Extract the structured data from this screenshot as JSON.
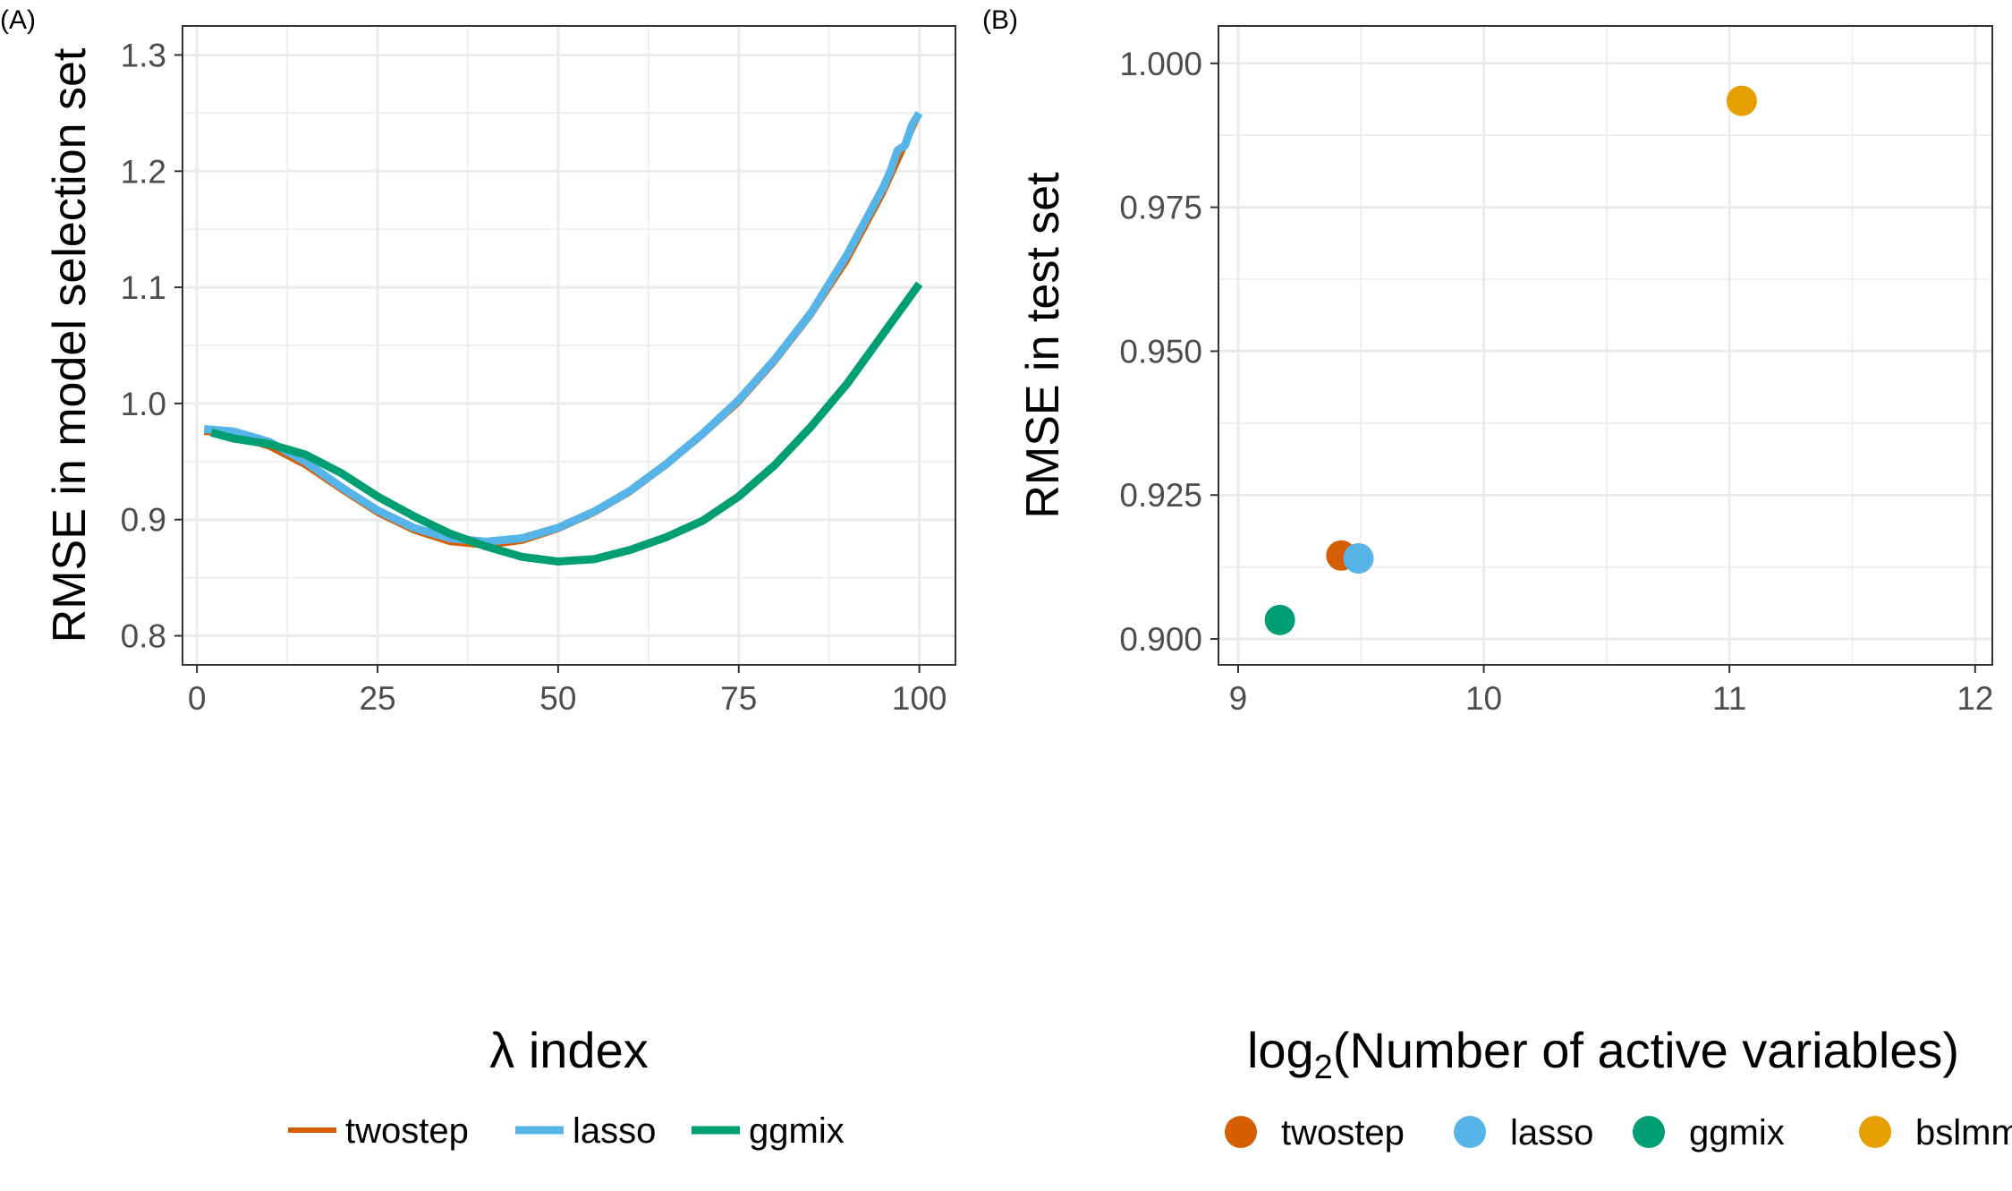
{
  "colors": {
    "twostep": "#D55E00",
    "lasso": "#56B4E9",
    "ggmix": "#009E73",
    "bslmm": "#E69F00",
    "grid": "#EBEBEB",
    "axis_text": "#4D4D4D"
  },
  "chart_data": [
    {
      "panel_label": "(A)",
      "type": "line",
      "xlabel_symbol": "λ",
      "xlabel_text": " index",
      "ylabel": "RMSE in model selection set",
      "xlim": [
        -2,
        105
      ],
      "ylim": [
        0.775,
        1.325
      ],
      "x_ticks": [
        0,
        25,
        50,
        75,
        100
      ],
      "y_ticks": [
        0.8,
        0.9,
        1.0,
        1.1,
        1.2,
        1.3
      ],
      "x_tick_labels": [
        "0",
        "25",
        "50",
        "75",
        "100"
      ],
      "y_tick_labels": [
        "0.8",
        "0.9",
        "1.0",
        "1.1",
        "1.2",
        "1.3"
      ],
      "grid": true,
      "legend_position": "bottom",
      "series": [
        {
          "name": "twostep",
          "x": [
            1,
            5,
            10,
            15,
            20,
            25,
            30,
            35,
            40,
            45,
            50,
            55,
            60,
            65,
            70,
            75,
            80,
            85,
            90,
            95,
            100
          ],
          "y": [
            0.975,
            0.972,
            0.962,
            0.946,
            0.925,
            0.905,
            0.89,
            0.88,
            0.877,
            0.881,
            0.891,
            0.905,
            0.923,
            0.946,
            0.972,
            1.0,
            1.035,
            1.075,
            1.122,
            1.18,
            1.248
          ]
        },
        {
          "name": "lasso",
          "x": [
            1,
            5,
            10,
            15,
            20,
            25,
            30,
            35,
            40,
            45,
            50,
            55,
            60,
            65,
            70,
            75,
            80,
            85,
            90,
            95,
            96,
            97,
            98,
            99,
            100
          ],
          "y": [
            0.978,
            0.976,
            0.967,
            0.95,
            0.928,
            0.908,
            0.893,
            0.884,
            0.881,
            0.884,
            0.893,
            0.907,
            0.925,
            0.948,
            0.974,
            1.003,
            1.038,
            1.078,
            1.128,
            1.186,
            1.2,
            1.218,
            1.222,
            1.24,
            1.25
          ]
        },
        {
          "name": "ggmix",
          "x": [
            2,
            5,
            10,
            15,
            20,
            25,
            30,
            35,
            40,
            45,
            50,
            55,
            60,
            65,
            70,
            75,
            80,
            85,
            90,
            95,
            100
          ],
          "y": [
            0.975,
            0.97,
            0.965,
            0.956,
            0.94,
            0.92,
            0.903,
            0.888,
            0.877,
            0.868,
            0.864,
            0.866,
            0.874,
            0.885,
            0.899,
            0.92,
            0.947,
            0.98,
            1.017,
            1.06,
            1.103
          ]
        }
      ],
      "legend": [
        "twostep",
        "lasso",
        "ggmix"
      ]
    },
    {
      "panel_label": "(B)",
      "type": "scatter",
      "xlabel_prefix": "log",
      "xlabel_sub": "2",
      "xlabel_suffix": "(Number of active variables)",
      "ylabel": "RMSE in test set",
      "xlim": [
        8.92,
        12.07
      ],
      "ylim": [
        0.8955,
        1.0065
      ],
      "x_ticks": [
        9,
        10,
        11,
        12
      ],
      "y_ticks": [
        0.9,
        0.925,
        0.95,
        0.975,
        1.0
      ],
      "x_tick_labels": [
        "9",
        "10",
        "11",
        "12"
      ],
      "y_tick_labels": [
        "0.900",
        "0.925",
        "0.950",
        "0.975",
        "1.000"
      ],
      "grid": true,
      "legend_position": "bottom",
      "points": [
        {
          "name": "twostep",
          "x": 9.42,
          "y": 0.9145
        },
        {
          "name": "lasso",
          "x": 9.49,
          "y": 0.914
        },
        {
          "name": "ggmix",
          "x": 9.17,
          "y": 0.9033
        },
        {
          "name": "bslmm",
          "x": 11.05,
          "y": 0.9935
        }
      ],
      "legend": [
        "twostep",
        "lasso",
        "ggmix",
        "bslmm"
      ]
    }
  ]
}
